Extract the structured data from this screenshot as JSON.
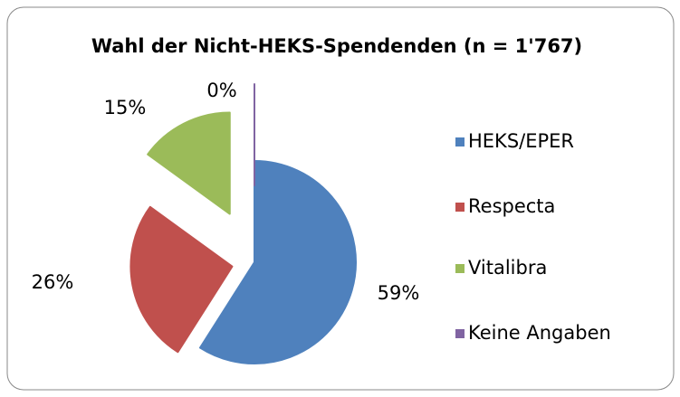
{
  "chart_data": {
    "type": "pie",
    "title": "Wahl der Nicht-HEKS-Spendenden (n = 1'767)",
    "categories": [
      "HEKS/EPER",
      "Respecta",
      "Vitalibra",
      "Keine Angaben"
    ],
    "values": [
      59,
      26,
      15,
      0
    ],
    "value_labels": [
      "59%",
      "26%",
      "15%",
      "0%"
    ],
    "colors": [
      "#4f81bd",
      "#c0504d",
      "#9bbb59",
      "#8064a2"
    ],
    "legend": "right"
  }
}
